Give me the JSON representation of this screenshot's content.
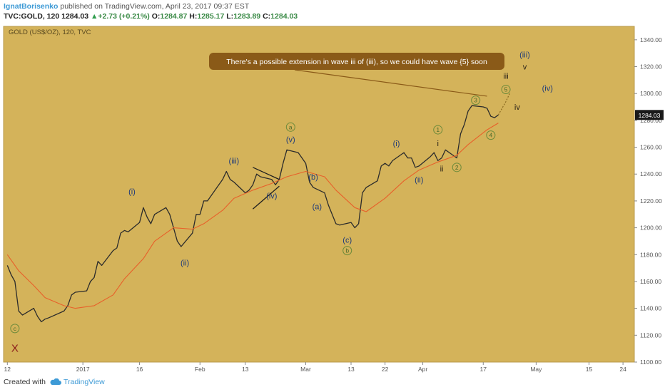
{
  "header": {
    "author": "IgnatBorisenko",
    "published": " published on TradingView.com, April 23, 2017 09:37 EST",
    "symbol": "TVC:GOLD, 120",
    "last": "1284.03",
    "change_arrow": "▲",
    "change": "+2.73 (+0.21%)",
    "o_label": "O:",
    "o_value": "1284.87",
    "h_label": "H:",
    "h_value": "1285.17",
    "l_label": "L:",
    "l_value": "1283.89",
    "c_label": "C:",
    "c_value": "1284.03"
  },
  "footer": {
    "created_with": "Created with",
    "brand": "TradingView"
  },
  "chart_data": {
    "type": "line",
    "title": "GOLD (US$/OZ), 120, TVC",
    "xlabel": "",
    "ylabel": "",
    "ylim": [
      1100,
      1350
    ],
    "y_ticks": [
      1100,
      1120,
      1140,
      1160,
      1180,
      1200,
      1220,
      1240,
      1260,
      1280,
      1300,
      1320,
      1340
    ],
    "x_ticks": [
      {
        "label": "12",
        "date": "2016-12-12"
      },
      {
        "label": "2017",
        "date": "2017-01-01"
      },
      {
        "label": "16",
        "date": "2017-01-16"
      },
      {
        "label": "Feb",
        "date": "2017-02-01"
      },
      {
        "label": "13",
        "date": "2017-02-13"
      },
      {
        "label": "Mar",
        "date": "2017-03-01"
      },
      {
        "label": "13",
        "date": "2017-03-13"
      },
      {
        "label": "22",
        "date": "2017-03-22"
      },
      {
        "label": "Apr",
        "date": "2017-04-01"
      },
      {
        "label": "17",
        "date": "2017-04-17"
      },
      {
        "label": "May",
        "date": "2017-05-01"
      },
      {
        "label": "15",
        "date": "2017-05-15"
      },
      {
        "label": "24",
        "date": "2017-05-24"
      }
    ],
    "last_price_label": "1284.03",
    "background": "#d4b35a",
    "price_color": "#2b2b2b",
    "ma_color": "#e8602a",
    "series": [
      {
        "points": [
          [
            "2016-12-12",
            1172
          ],
          [
            "2016-12-13",
            1165
          ],
          [
            "2016-12-14",
            1160
          ],
          [
            "2016-12-15",
            1138
          ],
          [
            "2016-12-16",
            1135
          ],
          [
            "2016-12-19",
            1140
          ],
          [
            "2016-12-20",
            1134
          ],
          [
            "2016-12-21",
            1130
          ],
          [
            "2016-12-22",
            1132
          ],
          [
            "2016-12-23",
            1133
          ],
          [
            "2016-12-27",
            1138
          ],
          [
            "2016-12-28",
            1142
          ],
          [
            "2016-12-29",
            1150
          ],
          [
            "2016-12-30",
            1152
          ],
          [
            "2017-01-02",
            1153
          ],
          [
            "2017-01-03",
            1160
          ],
          [
            "2017-01-04",
            1163
          ],
          [
            "2017-01-05",
            1175
          ],
          [
            "2017-01-06",
            1172
          ],
          [
            "2017-01-09",
            1183
          ],
          [
            "2017-01-10",
            1185
          ],
          [
            "2017-01-11",
            1196
          ],
          [
            "2017-01-12",
            1198
          ],
          [
            "2017-01-13",
            1197
          ],
          [
            "2017-01-16",
            1204
          ],
          [
            "2017-01-17",
            1215
          ],
          [
            "2017-01-18",
            1208
          ],
          [
            "2017-01-19",
            1203
          ],
          [
            "2017-01-20",
            1210
          ],
          [
            "2017-01-23",
            1215
          ],
          [
            "2017-01-24",
            1210
          ],
          [
            "2017-01-25",
            1200
          ],
          [
            "2017-01-26",
            1190
          ],
          [
            "2017-01-27",
            1186
          ],
          [
            "2017-01-30",
            1196
          ],
          [
            "2017-01-31",
            1210
          ],
          [
            "2017-02-01",
            1210
          ],
          [
            "2017-02-02",
            1220
          ],
          [
            "2017-02-03",
            1220
          ],
          [
            "2017-02-06",
            1232
          ],
          [
            "2017-02-07",
            1236
          ],
          [
            "2017-02-08",
            1242
          ],
          [
            "2017-02-09",
            1236
          ],
          [
            "2017-02-10",
            1234
          ],
          [
            "2017-02-13",
            1226
          ],
          [
            "2017-02-14",
            1228
          ],
          [
            "2017-02-15",
            1232
          ],
          [
            "2017-02-16",
            1240
          ],
          [
            "2017-02-17",
            1238
          ],
          [
            "2017-02-20",
            1236
          ],
          [
            "2017-02-21",
            1232
          ],
          [
            "2017-02-22",
            1236
          ],
          [
            "2017-02-23",
            1248
          ],
          [
            "2017-02-24",
            1258
          ],
          [
            "2017-02-27",
            1256
          ],
          [
            "2017-02-28",
            1252
          ],
          [
            "2017-03-01",
            1248
          ],
          [
            "2017-03-02",
            1234
          ],
          [
            "2017-03-03",
            1230
          ],
          [
            "2017-03-06",
            1226
          ],
          [
            "2017-03-07",
            1217
          ],
          [
            "2017-03-08",
            1210
          ],
          [
            "2017-03-09",
            1203
          ],
          [
            "2017-03-10",
            1202
          ],
          [
            "2017-03-13",
            1204
          ],
          [
            "2017-03-14",
            1200
          ],
          [
            "2017-03-15",
            1203
          ],
          [
            "2017-03-16",
            1226
          ],
          [
            "2017-03-17",
            1230
          ],
          [
            "2017-03-20",
            1235
          ],
          [
            "2017-03-21",
            1246
          ],
          [
            "2017-03-22",
            1248
          ],
          [
            "2017-03-23",
            1246
          ],
          [
            "2017-03-24",
            1250
          ],
          [
            "2017-03-27",
            1256
          ],
          [
            "2017-03-28",
            1252
          ],
          [
            "2017-03-29",
            1252
          ],
          [
            "2017-03-30",
            1245
          ],
          [
            "2017-03-31",
            1246
          ],
          [
            "2017-04-03",
            1253
          ],
          [
            "2017-04-04",
            1256
          ],
          [
            "2017-04-05",
            1250
          ],
          [
            "2017-04-06",
            1252
          ],
          [
            "2017-04-07",
            1258
          ],
          [
            "2017-04-10",
            1252
          ],
          [
            "2017-04-11",
            1270
          ],
          [
            "2017-04-12",
            1277
          ],
          [
            "2017-04-13",
            1287
          ],
          [
            "2017-04-14",
            1291
          ],
          [
            "2017-04-17",
            1290
          ],
          [
            "2017-04-18",
            1289
          ],
          [
            "2017-04-19",
            1283
          ],
          [
            "2017-04-20",
            1282
          ],
          [
            "2017-04-21",
            1284
          ]
        ]
      },
      {
        "points": [
          [
            "2016-12-12",
            1180
          ],
          [
            "2016-12-15",
            1168
          ],
          [
            "2016-12-19",
            1157
          ],
          [
            "2016-12-22",
            1148
          ],
          [
            "2016-12-27",
            1142
          ],
          [
            "2016-12-30",
            1140
          ],
          [
            "2017-01-04",
            1142
          ],
          [
            "2017-01-09",
            1150
          ],
          [
            "2017-01-12",
            1162
          ],
          [
            "2017-01-17",
            1177
          ],
          [
            "2017-01-20",
            1190
          ],
          [
            "2017-01-25",
            1200
          ],
          [
            "2017-01-30",
            1199
          ],
          [
            "2017-02-02",
            1203
          ],
          [
            "2017-02-07",
            1213
          ],
          [
            "2017-02-10",
            1222
          ],
          [
            "2017-02-15",
            1228
          ],
          [
            "2017-02-20",
            1233
          ],
          [
            "2017-02-24",
            1238
          ],
          [
            "2017-03-01",
            1242
          ],
          [
            "2017-03-06",
            1238
          ],
          [
            "2017-03-09",
            1228
          ],
          [
            "2017-03-14",
            1215
          ],
          [
            "2017-03-17",
            1212
          ],
          [
            "2017-03-22",
            1222
          ],
          [
            "2017-03-27",
            1235
          ],
          [
            "2017-03-31",
            1243
          ],
          [
            "2017-04-05",
            1249
          ],
          [
            "2017-04-10",
            1254
          ],
          [
            "2017-04-13",
            1262
          ],
          [
            "2017-04-18",
            1273
          ],
          [
            "2017-04-21",
            1278
          ]
        ]
      }
    ],
    "annotations": [
      {
        "text": "(i)",
        "date": "2017-01-14",
        "y": 1227,
        "style": "blue"
      },
      {
        "text": "(ii)",
        "date": "2017-01-28",
        "y": 1174,
        "style": "blue"
      },
      {
        "text": "(iii)",
        "date": "2017-02-10",
        "y": 1250,
        "style": "blue"
      },
      {
        "text": "(iv)",
        "date": "2017-02-20",
        "y": 1224,
        "style": "blue"
      },
      {
        "text": "(v)",
        "date": "2017-02-25",
        "y": 1266,
        "style": "blue"
      },
      {
        "text": "(b)",
        "date": "2017-03-03",
        "y": 1238,
        "style": "blue"
      },
      {
        "text": "(a)",
        "date": "2017-03-04",
        "y": 1216,
        "style": "blue"
      },
      {
        "text": "(c)",
        "date": "2017-03-12",
        "y": 1191,
        "style": "blue"
      },
      {
        "text": "(i)",
        "date": "2017-03-25",
        "y": 1263,
        "style": "blue"
      },
      {
        "text": "(ii)",
        "date": "2017-03-31",
        "y": 1236,
        "style": "blue"
      },
      {
        "text": "(iii)",
        "date": "2017-04-28",
        "y": 1329,
        "style": "blue"
      },
      {
        "text": "(iv)",
        "date": "2017-05-04",
        "y": 1304,
        "style": "blue"
      },
      {
        "text": "i",
        "date": "2017-04-05",
        "y": 1263,
        "style": "dark"
      },
      {
        "text": "ii",
        "date": "2017-04-06",
        "y": 1244,
        "style": "dark"
      },
      {
        "text": "iii",
        "date": "2017-04-23",
        "y": 1313,
        "style": "dark"
      },
      {
        "text": "iv",
        "date": "2017-04-26",
        "y": 1290,
        "style": "dark"
      },
      {
        "text": "v",
        "date": "2017-04-28",
        "y": 1320,
        "style": "dark"
      },
      {
        "text": "X",
        "date": "2016-12-14",
        "y": 1111,
        "style": "red"
      },
      {
        "text": "c",
        "date": "2016-12-14",
        "y": 1125,
        "style": "circle"
      },
      {
        "text": "a",
        "date": "2017-02-25",
        "y": 1275,
        "style": "circle"
      },
      {
        "text": "b",
        "date": "2017-03-12",
        "y": 1183,
        "style": "circle"
      },
      {
        "text": "1",
        "date": "2017-04-05",
        "y": 1273,
        "style": "circle"
      },
      {
        "text": "2",
        "date": "2017-04-10",
        "y": 1245,
        "style": "circle"
      },
      {
        "text": "3",
        "date": "2017-04-15",
        "y": 1295,
        "style": "circle"
      },
      {
        "text": "4",
        "date": "2017-04-19",
        "y": 1269,
        "style": "circle"
      },
      {
        "text": "5",
        "date": "2017-04-23",
        "y": 1303,
        "style": "circle"
      }
    ],
    "callout": {
      "text": "There's a possible extension in wave iii of (iii), so we could have wave {5} soon",
      "anchor_date": "2017-04-18",
      "anchor_y": 1298
    },
    "trendlines": [
      [
        [
          "2017-02-15",
          1245
        ],
        [
          "2017-02-22",
          1236
        ]
      ],
      [
        [
          "2017-02-15",
          1214
        ],
        [
          "2017-02-22",
          1231
        ]
      ]
    ],
    "projection": [
      [
        "2017-04-21",
        1284
      ],
      [
        "2017-04-23",
        1294
      ],
      [
        "2017-04-24",
        1300
      ]
    ]
  }
}
